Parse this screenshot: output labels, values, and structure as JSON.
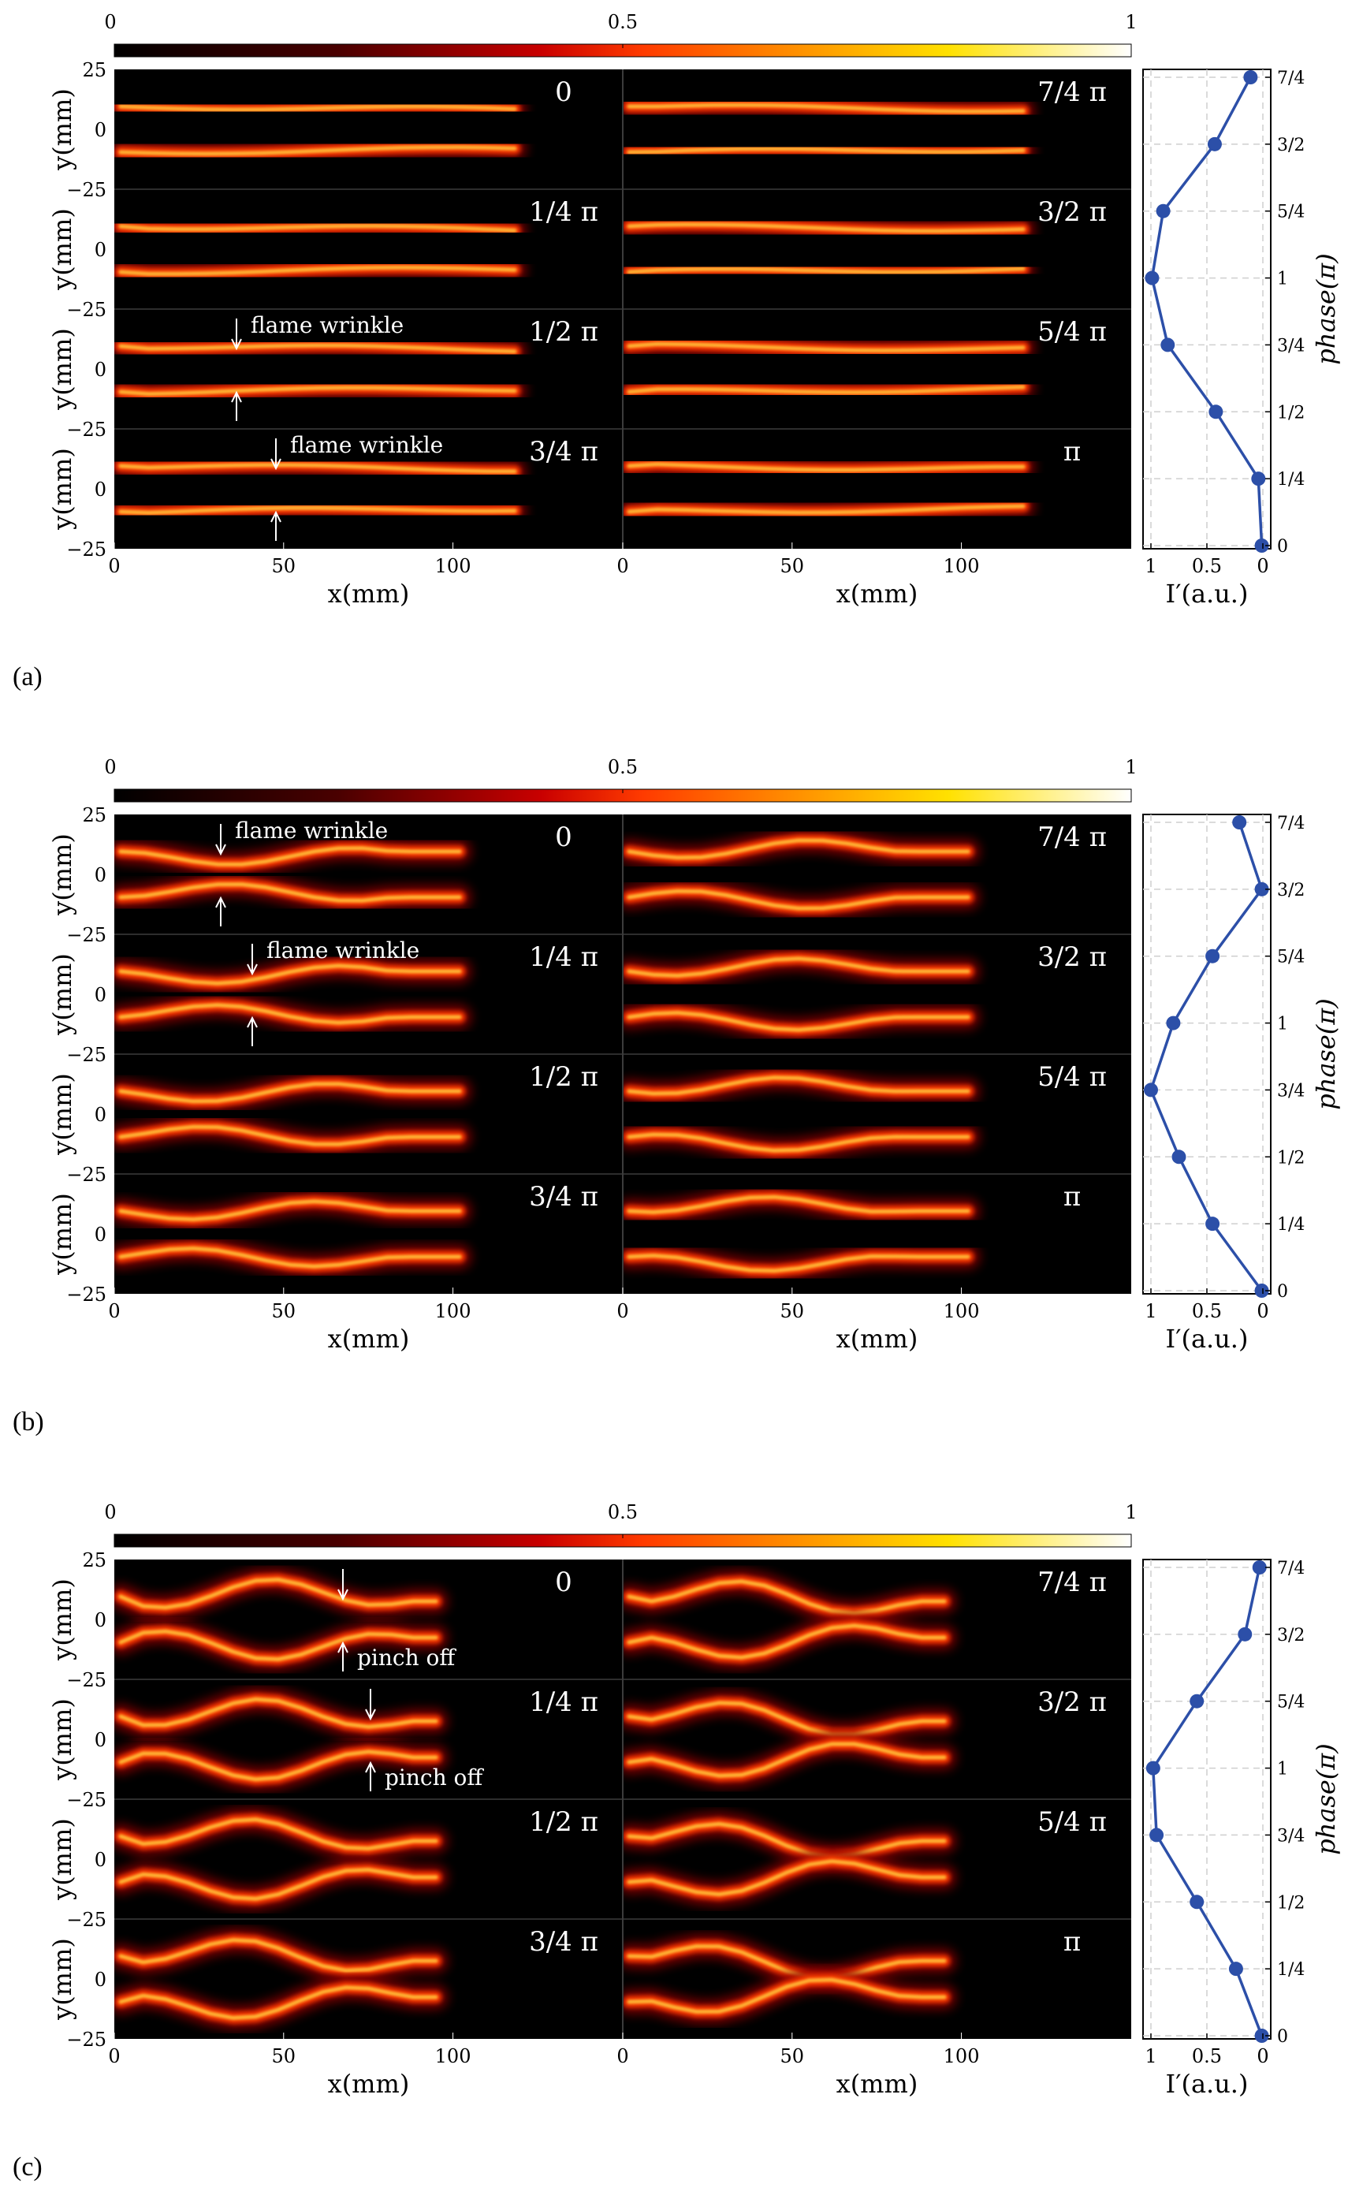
{
  "colorbar": {
    "ticks": [
      "0",
      "0.5",
      "1"
    ]
  },
  "axes": {
    "y_label": "y(mm)",
    "x_label": "x(mm)",
    "y_ticks": [
      "25",
      "0",
      "−25"
    ],
    "x_ticks": [
      "0",
      "50",
      "100"
    ],
    "side_x_label": "I′(a.u.)",
    "side_x_ticks": [
      "1",
      "0.5",
      "0"
    ],
    "side_y_label": "phase(π)",
    "side_y_ticks": [
      "0",
      "1/4",
      "1/2",
      "3/4",
      "1",
      "5/4",
      "3/2",
      "7/4"
    ]
  },
  "phase_labels": {
    "left": [
      "0",
      "1/4 π",
      "1/2 π",
      "3/4 π"
    ],
    "right": [
      "7/4 π",
      "3/2 π",
      "5/4 π",
      "π"
    ]
  },
  "panels": [
    {
      "letter": "(a)",
      "style": "straight",
      "annotations": [
        {
          "text": "flame wrinkle",
          "row": 2
        },
        {
          "text": "flame wrinkle",
          "row": 3
        }
      ]
    },
    {
      "letter": "(b)",
      "style": "wrinkle",
      "annotations": [
        {
          "text": "flame wrinkle",
          "row": 0
        },
        {
          "text": "flame wrinkle",
          "row": 1
        }
      ]
    },
    {
      "letter": "(c)",
      "style": "pinch",
      "annotations": [
        {
          "text": "pinch off",
          "row": 0
        },
        {
          "text": "pinch off",
          "row": 1
        }
      ]
    }
  ],
  "chart_data": [
    {
      "type": "line",
      "panel": "(a)",
      "x_label": "I′(a.u.)",
      "y_label": "phase(π)",
      "xlim": [
        1,
        0
      ],
      "phase": [
        0,
        0.25,
        0.5,
        0.75,
        1,
        1.25,
        1.5,
        1.75
      ],
      "intensity": [
        0.01,
        0.04,
        0.42,
        0.85,
        0.99,
        0.89,
        0.43,
        0.11
      ]
    },
    {
      "type": "line",
      "panel": "(b)",
      "x_label": "I′(a.u.)",
      "y_label": "phase(π)",
      "xlim": [
        1,
        0
      ],
      "phase": [
        0,
        0.25,
        0.5,
        0.75,
        1,
        1.25,
        1.5,
        1.75
      ],
      "intensity": [
        0.01,
        0.45,
        0.75,
        1.0,
        0.8,
        0.45,
        0.01,
        0.21
      ]
    },
    {
      "type": "line",
      "panel": "(c)",
      "x_label": "I′(a.u.)",
      "y_label": "phase(π)",
      "xlim": [
        1,
        0
      ],
      "phase": [
        0,
        0.25,
        0.5,
        0.75,
        1,
        1.25,
        1.5,
        1.75
      ],
      "intensity": [
        0.01,
        0.24,
        0.59,
        0.95,
        0.98,
        0.59,
        0.16,
        0.03
      ]
    }
  ]
}
